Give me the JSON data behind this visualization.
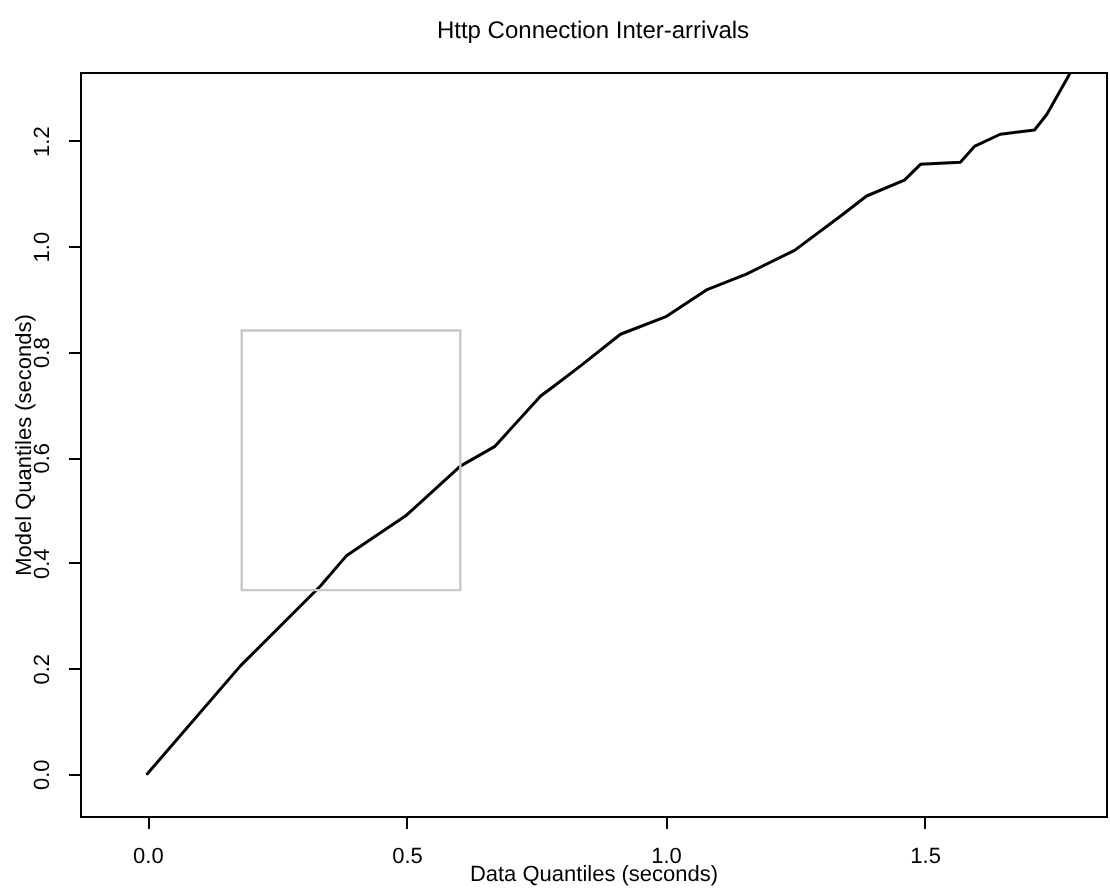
{
  "chart_data": {
    "type": "line",
    "title": "Http Connection Inter-arrivals",
    "xlabel": "Data Quantiles (seconds)",
    "ylabel": "Model Quantiles (seconds)",
    "x": [
      0,
      0.18,
      0.334,
      0.384,
      0.5,
      0.604,
      0.67,
      0.759,
      0.785,
      0.836,
      0.913,
      1.002,
      1.079,
      1.156,
      1.249,
      1.338,
      1.388,
      1.461,
      1.492,
      1.569,
      1.596,
      1.646,
      1.712,
      1.736,
      1.782
    ],
    "series": [
      {
        "color": "#000000",
        "values": [
          0,
          0.205,
          0.356,
          0.413,
          0.49,
          0.583,
          0.62,
          0.716,
          0.735,
          0.773,
          0.833,
          0.867,
          0.917,
          0.947,
          0.992,
          1.057,
          1.095,
          1.125,
          1.155,
          1.159,
          1.189,
          1.212,
          1.22,
          1.25,
          1.33
        ]
      }
    ],
    "xlim": [
      -0.13,
      1.85
    ],
    "ylim": [
      -0.08,
      1.33
    ],
    "xticks": [
      {
        "value": 0,
        "label": "0.0"
      },
      0.5,
      {
        "value": 1,
        "label": "1.0"
      },
      1.5
    ],
    "yticks": [
      {
        "value": 0,
        "label": "0.0"
      },
      0.2,
      0.4,
      0.6,
      0.8,
      {
        "value": 1,
        "label": "1.0"
      },
      1.2
    ],
    "grid": false,
    "legend": false,
    "marker": "none",
    "line_style": "solid"
  }
}
